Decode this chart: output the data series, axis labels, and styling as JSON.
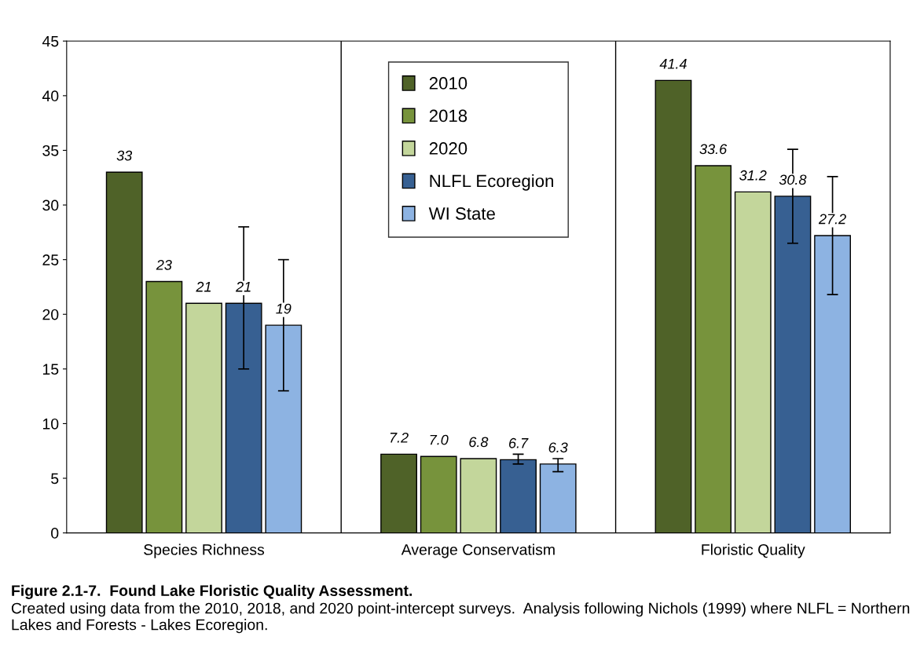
{
  "chart_data": {
    "type": "bar",
    "title": "Figure 2.1-7.  Found Lake Floristic Quality Assessment.",
    "annotations": [
      "Created using data from the 2010, 2018, and 2020 point-intercept surveys.  Analysis following Nichols (1999) where NLFL = Northern Lakes and Forests - Lakes Ecoregion."
    ],
    "categories": [
      "Species Richness",
      "Average Conservatism",
      "Floristic Quality"
    ],
    "series": [
      {
        "name": "2010",
        "color": "#4f6228",
        "values": [
          33,
          7.2,
          41.4
        ],
        "value_labels": [
          "33",
          "7.2",
          "41.4"
        ]
      },
      {
        "name": "2018",
        "color": "#77933c",
        "values": [
          23,
          7.0,
          33.6
        ],
        "value_labels": [
          "23",
          "7.0",
          "33.6"
        ]
      },
      {
        "name": "2020",
        "color": "#c3d69b",
        "values": [
          21,
          6.8,
          31.2
        ],
        "value_labels": [
          "21",
          "6.8",
          "31.2"
        ]
      },
      {
        "name": "NLFL Ecoregion",
        "color": "#376092",
        "values": [
          21,
          6.7,
          30.8
        ],
        "value_labels": [
          "21",
          "6.7",
          "30.8"
        ],
        "errors": [
          [
            15,
            28
          ],
          [
            6.3,
            7.2
          ],
          [
            26.5,
            35.1
          ]
        ]
      },
      {
        "name": "WI State",
        "color": "#8db3e2",
        "values": [
          19,
          6.3,
          27.2
        ],
        "value_labels": [
          "19",
          "6.3",
          "27.2"
        ],
        "errors": [
          [
            13,
            25
          ],
          [
            5.6,
            6.8
          ],
          [
            21.8,
            32.6
          ]
        ]
      }
    ],
    "ylim": [
      0,
      45
    ],
    "yticks": [
      0,
      5,
      10,
      15,
      20,
      25,
      30,
      35,
      40,
      45
    ],
    "grid": "x",
    "legend": "top"
  }
}
